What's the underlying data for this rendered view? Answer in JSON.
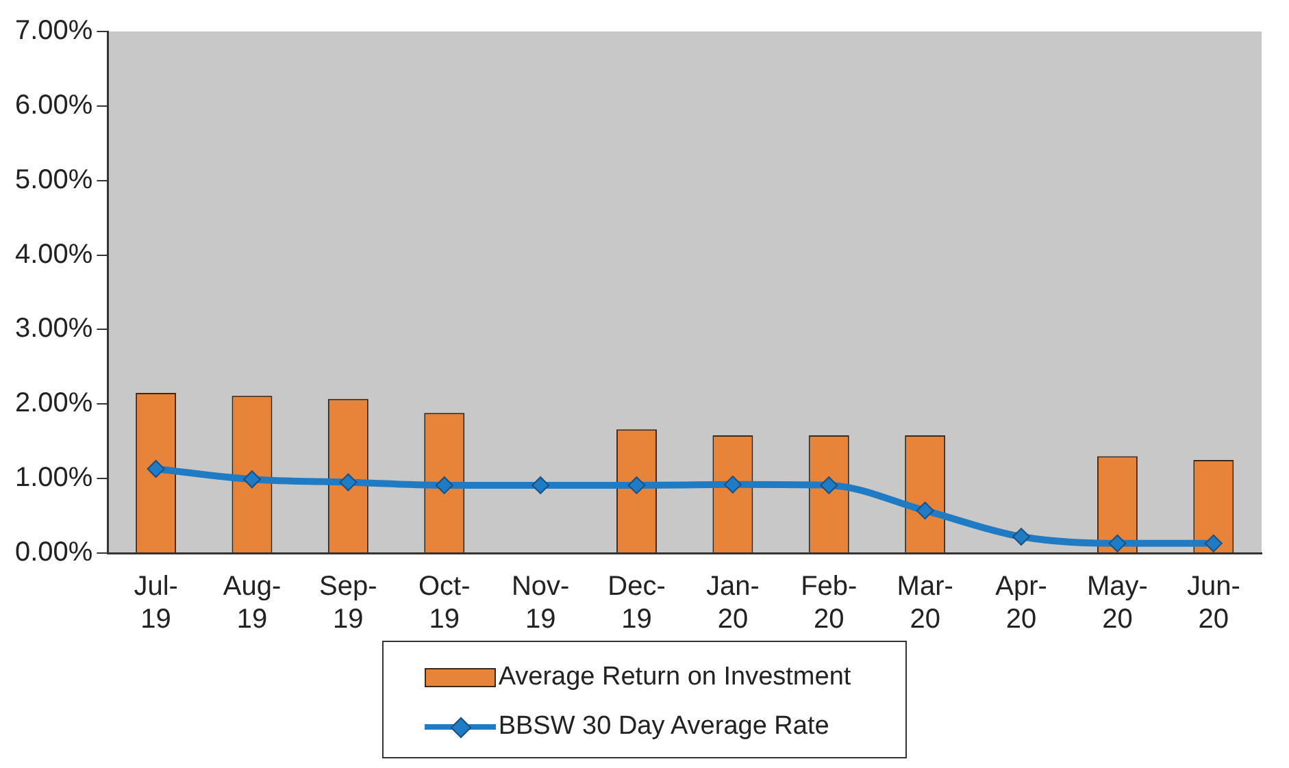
{
  "chart_data": {
    "type": "bar",
    "categories": [
      "Jul-19",
      "Aug-19",
      "Sep-19",
      "Oct-19",
      "Nov-19",
      "Dec-19",
      "Jan-20",
      "Feb-20",
      "Mar-20",
      "Apr-20",
      "May-20",
      "Jun-20"
    ],
    "series": [
      {
        "name": "Average Return on Investment",
        "color": "#e8833a",
        "values": [
          2.15,
          2.11,
          2.07,
          1.88,
          null,
          1.66,
          1.58,
          1.58,
          1.58,
          null,
          1.3,
          1.25
        ]
      },
      {
        "name": "BBSW 30 Day Average Rate",
        "type": "line",
        "color": "#1f7cc4",
        "marker": "diamond",
        "values": [
          1.13,
          0.99,
          0.95,
          0.91,
          0.91,
          0.91,
          0.92,
          0.91,
          0.57,
          0.22,
          0.13,
          0.13
        ]
      }
    ],
    "ylim": [
      0,
      7
    ],
    "yticks": [
      {
        "value": 0,
        "label": "0.00%"
      },
      {
        "value": 1,
        "label": "1.00%"
      },
      {
        "value": 2,
        "label": "2.00%"
      },
      {
        "value": 3,
        "label": "3.00%"
      },
      {
        "value": 4,
        "label": "4.00%"
      },
      {
        "value": 5,
        "label": "5.00%"
      },
      {
        "value": 6,
        "label": "6.00%"
      },
      {
        "value": 7,
        "label": "7.00%"
      }
    ],
    "grid": false,
    "legend": "bottom"
  }
}
